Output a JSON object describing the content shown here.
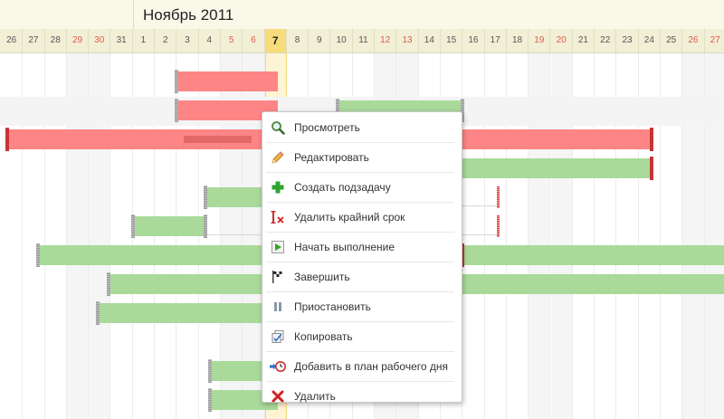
{
  "header": {
    "month_title": "Ноябрь 2011",
    "days": [
      {
        "label": "26",
        "weekend": false
      },
      {
        "label": "27",
        "weekend": false
      },
      {
        "label": "28",
        "weekend": false
      },
      {
        "label": "29",
        "weekend": true
      },
      {
        "label": "30",
        "weekend": true
      },
      {
        "label": "31",
        "weekend": false
      },
      {
        "label": "1",
        "weekend": false
      },
      {
        "label": "2",
        "weekend": false
      },
      {
        "label": "3",
        "weekend": false
      },
      {
        "label": "4",
        "weekend": false
      },
      {
        "label": "5",
        "weekend": true
      },
      {
        "label": "6",
        "weekend": true
      },
      {
        "label": "7",
        "weekend": false,
        "today": true
      },
      {
        "label": "8",
        "weekend": false
      },
      {
        "label": "9",
        "weekend": false
      },
      {
        "label": "10",
        "weekend": false
      },
      {
        "label": "11",
        "weekend": false
      },
      {
        "label": "12",
        "weekend": true
      },
      {
        "label": "13",
        "weekend": true
      },
      {
        "label": "14",
        "weekend": false
      },
      {
        "label": "15",
        "weekend": false
      },
      {
        "label": "16",
        "weekend": false
      },
      {
        "label": "17",
        "weekend": false
      },
      {
        "label": "18",
        "weekend": false
      },
      {
        "label": "19",
        "weekend": true
      },
      {
        "label": "20",
        "weekend": true
      },
      {
        "label": "21",
        "weekend": false
      },
      {
        "label": "22",
        "weekend": false
      },
      {
        "label": "23",
        "weekend": false
      },
      {
        "label": "24",
        "weekend": false
      },
      {
        "label": "25",
        "weekend": false
      },
      {
        "label": "26",
        "weekend": true
      },
      {
        "label": "27",
        "weekend": true
      }
    ]
  },
  "colors": {
    "overdue_bar": "#fd8585",
    "active_bar": "#a9da9a",
    "weekend_text": "#e05a4a",
    "today_highlight": "#f6dc7a"
  },
  "context_menu": {
    "items": [
      {
        "label": "Просмотреть",
        "icon": "magnifier-icon"
      },
      {
        "label": "Редактировать",
        "icon": "pencil-icon"
      },
      {
        "label": "Создать подзадачу",
        "icon": "plus-icon"
      },
      {
        "label": "Удалить крайний срок",
        "icon": "remove-deadline-icon"
      },
      {
        "label": "Начать выполнение",
        "icon": "play-icon"
      },
      {
        "label": "Завершить",
        "icon": "finish-flag-icon"
      },
      {
        "label": "Приостановить",
        "icon": "pause-icon"
      },
      {
        "label": "Копировать",
        "icon": "copy-icon"
      },
      {
        "label": "Добавить в план рабочего дня",
        "icon": "add-to-plan-clock-icon"
      },
      {
        "label": "Удалить",
        "icon": "delete-x-icon"
      }
    ]
  }
}
